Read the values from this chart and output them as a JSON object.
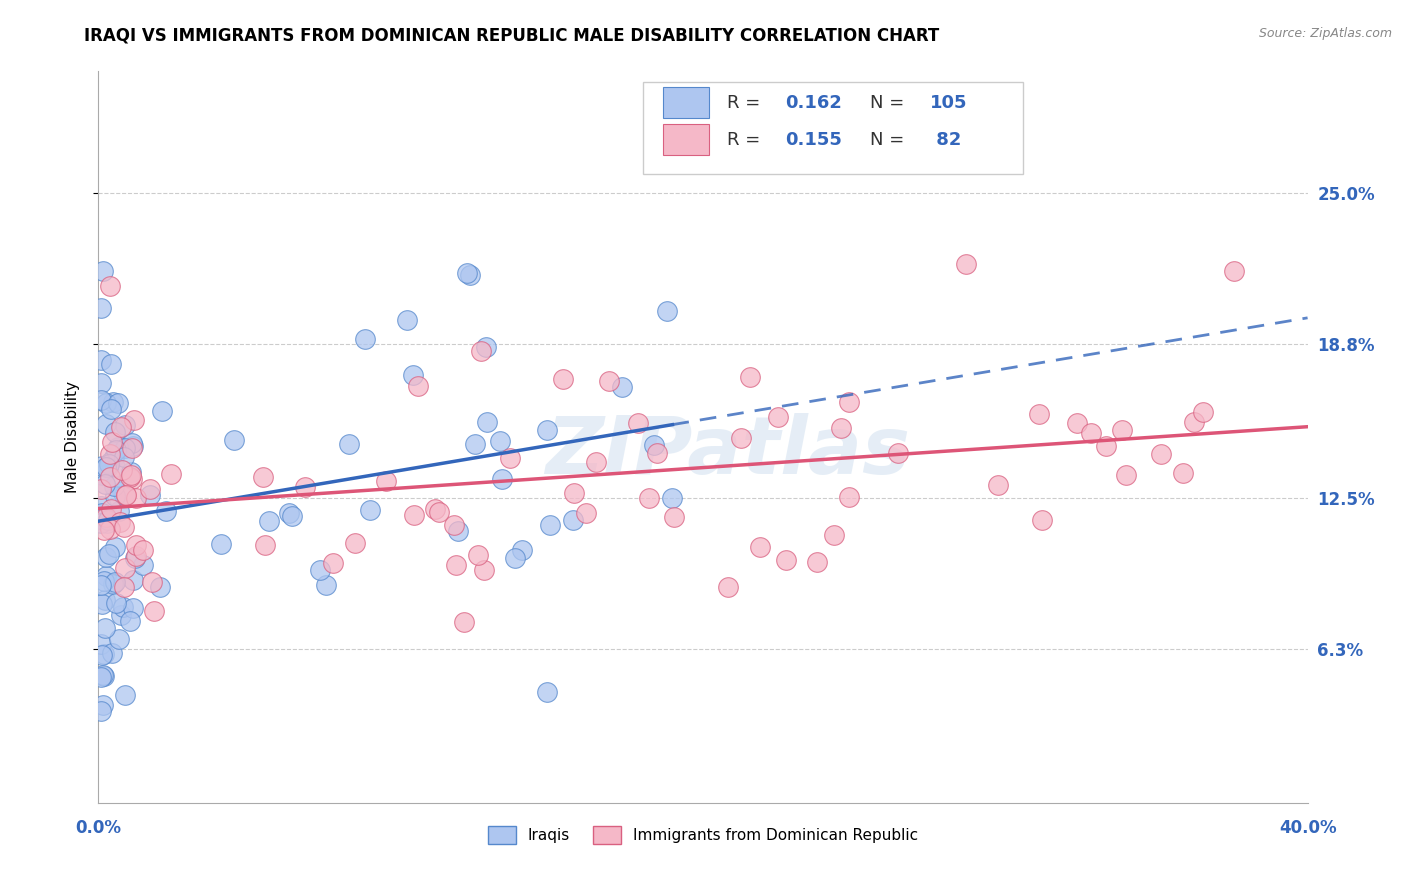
{
  "title": "IRAQI VS IMMIGRANTS FROM DOMINICAN REPUBLIC MALE DISABILITY CORRELATION CHART",
  "source": "Source: ZipAtlas.com",
  "ylabel": "Male Disability",
  "xlim": [
    0.0,
    0.4
  ],
  "ylim": [
    0.0,
    0.3
  ],
  "ytick_vals": [
    0.063,
    0.125,
    0.188,
    0.25
  ],
  "ytick_labels": [
    "6.3%",
    "12.5%",
    "18.8%",
    "25.0%"
  ],
  "xtick_vals": [
    0.0,
    0.1,
    0.2,
    0.3,
    0.4
  ],
  "color_iraqi_fill": "#aec6f0",
  "color_iraqi_edge": "#5588cc",
  "color_dominican_fill": "#f5b8c8",
  "color_dominican_edge": "#d96080",
  "color_blue_trend": "#3366bb",
  "color_pink_trend": "#dd5577",
  "color_blue_text": "#3366bb",
  "color_pink_text": "#cc4466",
  "background_color": "#ffffff",
  "grid_color": "#cccccc",
  "title_fontsize": 12,
  "axis_label_fontsize": 11,
  "tick_fontsize": 12,
  "watermark": "ZIPatlas",
  "legend_r1": "0.162",
  "legend_n1": "105",
  "legend_r2": "0.155",
  "legend_n2": "82"
}
